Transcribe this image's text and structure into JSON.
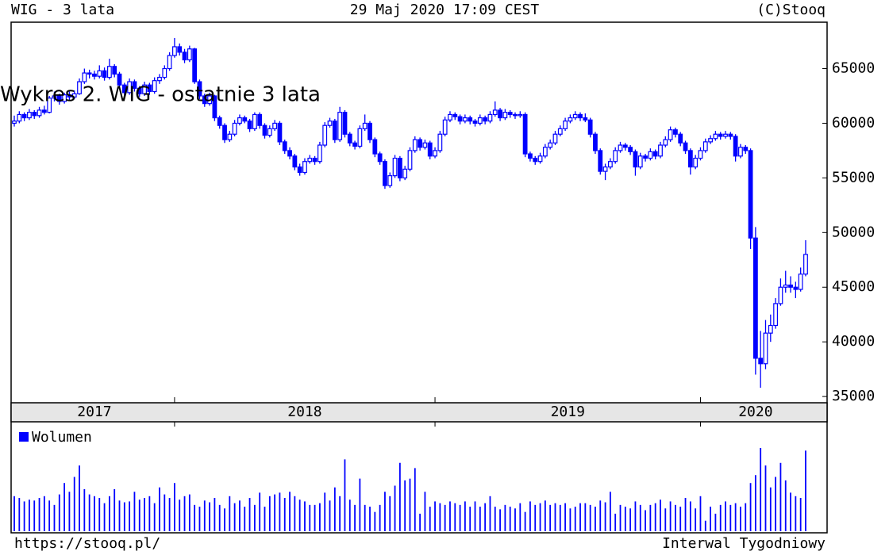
{
  "chart_data": {
    "type": "candlestick",
    "title": "WIG - 3 lata",
    "date": "29 Maj 2020 17:09 CEST",
    "source": "(C)Stooq",
    "caption": "Wykres 2. WIG - ostatnie 3 lata",
    "url": "https://stooq.pl/",
    "interval": "Interwal Tygodniowy",
    "color": "#0000ff",
    "ylim": [
      34500,
      69100
    ],
    "yticks": [
      35000,
      40000,
      45000,
      50000,
      55000,
      60000,
      65000
    ],
    "year_labels": [
      "2017",
      "2018",
      "2019",
      "2020"
    ],
    "xticks": [
      32,
      84,
      137
    ],
    "ohlc": [
      [
        60000,
        60700,
        59700,
        60200
      ],
      [
        60200,
        61100,
        60000,
        60800
      ],
      [
        60800,
        61000,
        60200,
        60500
      ],
      [
        60500,
        61300,
        60300,
        61000
      ],
      [
        61000,
        61200,
        60400,
        60700
      ],
      [
        60700,
        61500,
        60500,
        61200
      ],
      [
        61200,
        61600,
        60800,
        61000
      ],
      [
        61000,
        62500,
        60900,
        62300
      ],
      [
        62300,
        62900,
        62000,
        62500
      ],
      [
        62500,
        62700,
        61700,
        62000
      ],
      [
        62000,
        62800,
        61800,
        62600
      ],
      [
        62600,
        62900,
        62100,
        62400
      ],
      [
        62400,
        63000,
        62200,
        62700
      ],
      [
        62700,
        64100,
        62600,
        63800
      ],
      [
        63800,
        65000,
        63600,
        64600
      ],
      [
        64600,
        64900,
        64100,
        64500
      ],
      [
        64500,
        64800,
        64000,
        64300
      ],
      [
        64300,
        65300,
        64100,
        64800
      ],
      [
        64800,
        65100,
        63900,
        64200
      ],
      [
        64200,
        65900,
        64000,
        65200
      ],
      [
        65200,
        65400,
        64200,
        64500
      ],
      [
        64500,
        64700,
        63200,
        63500
      ],
      [
        63500,
        63700,
        62500,
        62800
      ],
      [
        62800,
        64100,
        62600,
        63800
      ],
      [
        63800,
        64000,
        62900,
        63200
      ],
      [
        63200,
        63400,
        62400,
        62700
      ],
      [
        62700,
        63800,
        62500,
        63500
      ],
      [
        63500,
        63700,
        62600,
        62900
      ],
      [
        62900,
        64200,
        62700,
        63900
      ],
      [
        63900,
        64500,
        63600,
        64200
      ],
      [
        64200,
        65300,
        64000,
        65000
      ],
      [
        65000,
        66500,
        64800,
        66200
      ],
      [
        66200,
        67800,
        66000,
        67000
      ],
      [
        67000,
        67300,
        66200,
        66500
      ],
      [
        66500,
        66800,
        65500,
        65800
      ],
      [
        65800,
        67100,
        65600,
        66800
      ],
      [
        66800,
        66900,
        63600,
        63800
      ],
      [
        63800,
        64000,
        62200,
        62500
      ],
      [
        62500,
        62700,
        61500,
        61800
      ],
      [
        61800,
        62800,
        61600,
        62500
      ],
      [
        62500,
        62600,
        60200,
        60500
      ],
      [
        60500,
        60700,
        59500,
        59800
      ],
      [
        59800,
        60000,
        58200,
        58500
      ],
      [
        58500,
        59300,
        58300,
        59000
      ],
      [
        59000,
        60300,
        58800,
        60000
      ],
      [
        60000,
        60800,
        59800,
        60500
      ],
      [
        60500,
        60700,
        60000,
        60200
      ],
      [
        60200,
        60400,
        59200,
        59500
      ],
      [
        59500,
        61000,
        59300,
        60800
      ],
      [
        60800,
        61000,
        59500,
        59800
      ],
      [
        59800,
        60000,
        58600,
        58900
      ],
      [
        58900,
        59800,
        58700,
        59500
      ],
      [
        59500,
        60300,
        59300,
        60000
      ],
      [
        60000,
        60200,
        58000,
        58300
      ],
      [
        58300,
        58500,
        57200,
        57500
      ],
      [
        57500,
        57800,
        56700,
        57000
      ],
      [
        57000,
        57200,
        55700,
        56000
      ],
      [
        56000,
        56300,
        55200,
        55500
      ],
      [
        55500,
        56800,
        55300,
        56500
      ],
      [
        56500,
        57100,
        56300,
        56800
      ],
      [
        56800,
        57000,
        56200,
        56500
      ],
      [
        56500,
        58300,
        56300,
        58000
      ],
      [
        58000,
        60100,
        57800,
        59800
      ],
      [
        59800,
        60500,
        59600,
        60200
      ],
      [
        60200,
        60400,
        58200,
        58500
      ],
      [
        58500,
        61500,
        58300,
        61000
      ],
      [
        61000,
        61200,
        58700,
        59000
      ],
      [
        59000,
        59200,
        57900,
        58200
      ],
      [
        58200,
        58400,
        57600,
        57900
      ],
      [
        57900,
        59800,
        57700,
        59500
      ],
      [
        59500,
        60800,
        59300,
        60000
      ],
      [
        60000,
        60200,
        58200,
        58500
      ],
      [
        58500,
        58700,
        56900,
        57200
      ],
      [
        57200,
        57400,
        56200,
        56500
      ],
      [
        56500,
        56700,
        54000,
        54300
      ],
      [
        54300,
        55500,
        54100,
        55200
      ],
      [
        55200,
        57100,
        55000,
        56800
      ],
      [
        56800,
        57000,
        54700,
        55000
      ],
      [
        55000,
        56100,
        54800,
        55800
      ],
      [
        55800,
        57800,
        55600,
        57500
      ],
      [
        57500,
        58800,
        57300,
        58500
      ],
      [
        58500,
        58700,
        57500,
        57800
      ],
      [
        57800,
        58500,
        57600,
        58200
      ],
      [
        58200,
        58400,
        56700,
        57000
      ],
      [
        57000,
        57800,
        56800,
        57500
      ],
      [
        57500,
        59300,
        57300,
        59000
      ],
      [
        59000,
        60600,
        58800,
        60300
      ],
      [
        60300,
        61100,
        60100,
        60800
      ],
      [
        60800,
        61000,
        60300,
        60600
      ],
      [
        60600,
        60800,
        59900,
        60200
      ],
      [
        60200,
        60800,
        60000,
        60500
      ],
      [
        60500,
        60700,
        59900,
        60200
      ],
      [
        60200,
        60400,
        59700,
        60000
      ],
      [
        60000,
        60800,
        59800,
        60500
      ],
      [
        60500,
        60700,
        59900,
        60200
      ],
      [
        60200,
        61100,
        60000,
        60800
      ],
      [
        60800,
        62000,
        60600,
        61200
      ],
      [
        61200,
        61400,
        60200,
        60500
      ],
      [
        60500,
        61300,
        60300,
        61000
      ],
      [
        61000,
        61200,
        60500,
        60800
      ],
      [
        60800,
        61000,
        60400,
        60700
      ],
      [
        60700,
        61100,
        60500,
        60800
      ],
      [
        60800,
        61000,
        56900,
        57200
      ],
      [
        57200,
        57400,
        56500,
        56800
      ],
      [
        56800,
        57000,
        56200,
        56500
      ],
      [
        56500,
        57300,
        56300,
        57000
      ],
      [
        57000,
        58100,
        56800,
        57800
      ],
      [
        57800,
        58500,
        57600,
        58200
      ],
      [
        58200,
        59300,
        58000,
        59000
      ],
      [
        59000,
        59800,
        58800,
        59500
      ],
      [
        59500,
        60500,
        59300,
        60200
      ],
      [
        60200,
        60800,
        60000,
        60500
      ],
      [
        60500,
        61100,
        60300,
        60800
      ],
      [
        60800,
        61000,
        60200,
        60500
      ],
      [
        60500,
        60900,
        60100,
        60300
      ],
      [
        60300,
        60500,
        58700,
        59000
      ],
      [
        59000,
        59200,
        57200,
        57500
      ],
      [
        57500,
        57700,
        55300,
        55600
      ],
      [
        55600,
        56300,
        54800,
        56000
      ],
      [
        56000,
        56800,
        55800,
        56500
      ],
      [
        56500,
        57800,
        56300,
        57500
      ],
      [
        57500,
        58300,
        57300,
        58000
      ],
      [
        58000,
        58200,
        57500,
        57800
      ],
      [
        57800,
        58000,
        57100,
        57400
      ],
      [
        57400,
        57600,
        55200,
        56000
      ],
      [
        56000,
        57300,
        55800,
        57000
      ],
      [
        57000,
        57200,
        56500,
        56800
      ],
      [
        56800,
        57700,
        56600,
        57400
      ],
      [
        57400,
        57600,
        56700,
        57000
      ],
      [
        57000,
        58300,
        56800,
        58000
      ],
      [
        58000,
        58800,
        57800,
        58500
      ],
      [
        58500,
        59700,
        58300,
        59400
      ],
      [
        59400,
        59600,
        58700,
        59000
      ],
      [
        59000,
        59200,
        57900,
        58200
      ],
      [
        58200,
        58400,
        57200,
        57500
      ],
      [
        57500,
        57700,
        55300,
        56000
      ],
      [
        56000,
        57100,
        55800,
        56800
      ],
      [
        56800,
        57800,
        56600,
        57500
      ],
      [
        57500,
        58600,
        57300,
        58300
      ],
      [
        58300,
        58900,
        58100,
        58600
      ],
      [
        58600,
        59300,
        58400,
        59000
      ],
      [
        59000,
        59200,
        58500,
        58800
      ],
      [
        58800,
        59300,
        58600,
        59000
      ],
      [
        59000,
        59200,
        58500,
        58800
      ],
      [
        58800,
        59000,
        56500,
        57000
      ],
      [
        57000,
        58100,
        56800,
        57800
      ],
      [
        57800,
        58000,
        57200,
        57500
      ],
      [
        57500,
        57700,
        48500,
        49500
      ],
      [
        49500,
        50500,
        37000,
        38500
      ],
      [
        38500,
        41000,
        35800,
        38000
      ],
      [
        38000,
        42000,
        37500,
        40800
      ],
      [
        40800,
        42500,
        40000,
        41500
      ],
      [
        41500,
        44000,
        41200,
        43500
      ],
      [
        43500,
        45800,
        43300,
        45000
      ],
      [
        45000,
        46500,
        44500,
        45200
      ],
      [
        45200,
        46000,
        44500,
        45000
      ],
      [
        45000,
        45500,
        44000,
        44800
      ],
      [
        44800,
        46800,
        44600,
        46200
      ],
      [
        46200,
        49300,
        46000,
        48000
      ]
    ],
    "volume": {
      "name": "Wolumen",
      "color": "#0000ff",
      "values": [
        40,
        38,
        34,
        36,
        35,
        38,
        40,
        35,
        30,
        42,
        55,
        45,
        62,
        75,
        48,
        42,
        40,
        38,
        32,
        40,
        48,
        35,
        33,
        34,
        45,
        36,
        38,
        40,
        32,
        50,
        42,
        38,
        55,
        36,
        40,
        42,
        30,
        28,
        35,
        33,
        38,
        30,
        26,
        40,
        32,
        35,
        28,
        38,
        30,
        44,
        28,
        40,
        42,
        44,
        38,
        45,
        40,
        36,
        34,
        30,
        30,
        32,
        44,
        35,
        50,
        40,
        82,
        36,
        30,
        60,
        30,
        28,
        22,
        30,
        45,
        40,
        52,
        78,
        58,
        60,
        72,
        20,
        45,
        28,
        34,
        32,
        30,
        34,
        32,
        30,
        34,
        28,
        34,
        28,
        32,
        40,
        28,
        25,
        30,
        28,
        26,
        32,
        22,
        34,
        30,
        32,
        35,
        30,
        32,
        30,
        32,
        26,
        28,
        32,
        32,
        30,
        28,
        35,
        33,
        45,
        20,
        30,
        28,
        26,
        34,
        30,
        24,
        30,
        32,
        36,
        26,
        34,
        30,
        28,
        38,
        34,
        26,
        40,
        12,
        28,
        20,
        30,
        34,
        30,
        32,
        28,
        32,
        55,
        64,
        95,
        75,
        50,
        62,
        78,
        58,
        44,
        40,
        38,
        92
      ]
    }
  }
}
